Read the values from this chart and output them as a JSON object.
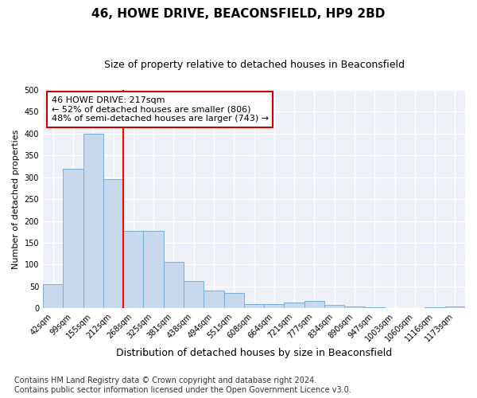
{
  "title": "46, HOWE DRIVE, BEACONSFIELD, HP9 2BD",
  "subtitle": "Size of property relative to detached houses in Beaconsfield",
  "xlabel": "Distribution of detached houses by size in Beaconsfield",
  "ylabel": "Number of detached properties",
  "footnote": "Contains HM Land Registry data © Crown copyright and database right 2024.\nContains public sector information licensed under the Open Government Licence v3.0.",
  "bar_labels": [
    "42sqm",
    "99sqm",
    "155sqm",
    "212sqm",
    "268sqm",
    "325sqm",
    "381sqm",
    "438sqm",
    "494sqm",
    "551sqm",
    "608sqm",
    "664sqm",
    "721sqm",
    "777sqm",
    "834sqm",
    "890sqm",
    "947sqm",
    "1003sqm",
    "1060sqm",
    "1116sqm",
    "1173sqm"
  ],
  "bar_values": [
    55,
    320,
    400,
    295,
    178,
    178,
    107,
    63,
    40,
    36,
    10,
    10,
    14,
    17,
    8,
    5,
    3,
    0,
    0,
    3,
    5
  ],
  "bar_color": "#c8d8ec",
  "bar_edge_color": "#7aafd4",
  "ylim": [
    0,
    500
  ],
  "yticks": [
    0,
    50,
    100,
    150,
    200,
    250,
    300,
    350,
    400,
    450,
    500
  ],
  "red_line_x": 3.5,
  "annotation_text": "46 HOWE DRIVE: 217sqm\n← 52% of detached houses are smaller (806)\n48% of semi-detached houses are larger (743) →",
  "annotation_box_facecolor": "#ffffff",
  "annotation_box_edgecolor": "#cc0000",
  "background_color": "#ffffff",
  "plot_bg_color": "#eef2f8",
  "grid_color": "#ffffff",
  "title_fontsize": 11,
  "subtitle_fontsize": 9,
  "xlabel_fontsize": 9,
  "ylabel_fontsize": 8,
  "tick_fontsize": 7,
  "footnote_fontsize": 7
}
